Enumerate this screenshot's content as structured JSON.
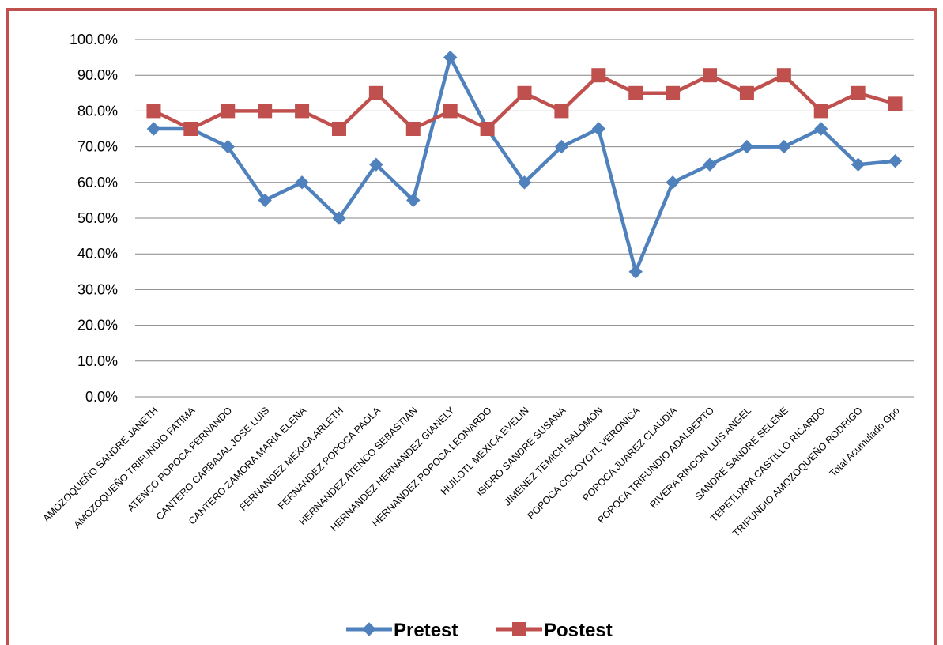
{
  "chart_data": {
    "type": "line",
    "title": "",
    "xlabel": "",
    "ylabel": "",
    "ylim": [
      0,
      100
    ],
    "y_tick_step": 10,
    "y_tick_format": "0.0%",
    "grid": "horizontal",
    "legend_position": "bottom",
    "categories": [
      "AMOZOQUEÑO SANDRE JANETH",
      "AMOZOQUEÑO TRIFUNDIO FATIMA",
      "ATENCO POPOCA FERNANDO",
      "CANTERO CARBAJAL JOSE LUIS",
      "CANTERO ZAMORA MARIA ELENA",
      "FERNANDEZ MEXICA ARLETH",
      "FERNANDEZ POPOCA PAOLA",
      "HERNANDEZ ATENCO SEBASTIAN",
      "HERNANDEZ HERNANDEZ GIANELY",
      "HERNANDEZ POPOCA LEONARDO",
      "HUILOTL MEXICA EVELIN",
      "ISIDRO SANDRE SUSANA",
      "JIMENEZ TEMICH SALOMON",
      "POPOCA COCOYOTL VERONICA",
      "POPOCA JUAREZ CLAUDIA",
      "POPOCA TRIFUNDIO ADALBERTO",
      "RIVERA RINCON LUIS ANGEL",
      "SANDRE SANDRE SELENE",
      "TEPETLIXPA CASTILLO RICARDO",
      "TRIFUNDIO AMOZOQUEÑO RODRIGO",
      "Total Acumulado Gpo"
    ],
    "series": [
      {
        "name": "Pretest",
        "color": "#4f81bd",
        "marker": "diamond",
        "values": [
          75,
          75,
          70,
          55,
          60,
          50,
          65,
          55,
          95,
          75,
          60,
          70,
          75,
          35,
          60,
          65,
          70,
          70,
          75,
          65,
          66
        ]
      },
      {
        "name": "Postest",
        "color": "#c0504d",
        "marker": "square",
        "values": [
          80,
          75,
          80,
          80,
          80,
          75,
          85,
          75,
          80,
          75,
          85,
          80,
          90,
          85,
          85,
          90,
          85,
          90,
          80,
          85,
          82
        ]
      }
    ]
  },
  "colors": {
    "frame_border": "#c0504d",
    "gridline": "#868686",
    "text": "#000000"
  }
}
